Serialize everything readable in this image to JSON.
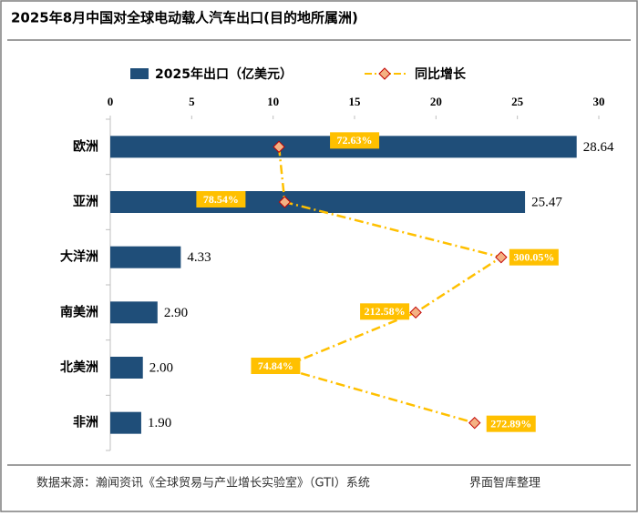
{
  "chart_data": {
    "type": "bar",
    "title": "2025年8月中国对全球电动载人汽车出口(目的地所属洲)",
    "categories": [
      "欧洲",
      "亚洲",
      "大洋洲",
      "南美洲",
      "北美洲",
      "非洲"
    ],
    "series": [
      {
        "name": "2025年出口（亿美元）",
        "color": "#1f4e79",
        "values": [
          28.64,
          25.47,
          4.33,
          2.9,
          2.0,
          1.9
        ],
        "value_labels": [
          "28.64",
          "25.47",
          "4.33",
          "2.90",
          "2.00",
          "1.90"
        ]
      },
      {
        "name": "同比增长",
        "type": "line",
        "axis": "x2",
        "color": "#ffc000",
        "marker_color": "#f4b183",
        "values": [
          72.63,
          78.54,
          300.05,
          212.58,
          74.84,
          272.89
        ],
        "value_labels": [
          "72.63%",
          "78.54%",
          "300.05%",
          "212.58%",
          "74.84%",
          "272.89%"
        ]
      }
    ],
    "xlim": [
      0,
      30
    ],
    "xticks": [
      0,
      5,
      10,
      15,
      20,
      25,
      30
    ],
    "x2lim": [
      -100,
      400
    ],
    "legend": "top",
    "source": "数据来源：瀚闻资讯《全球贸易与产业增长实验室》（GTI）系统",
    "credit": "界面智库整理"
  }
}
